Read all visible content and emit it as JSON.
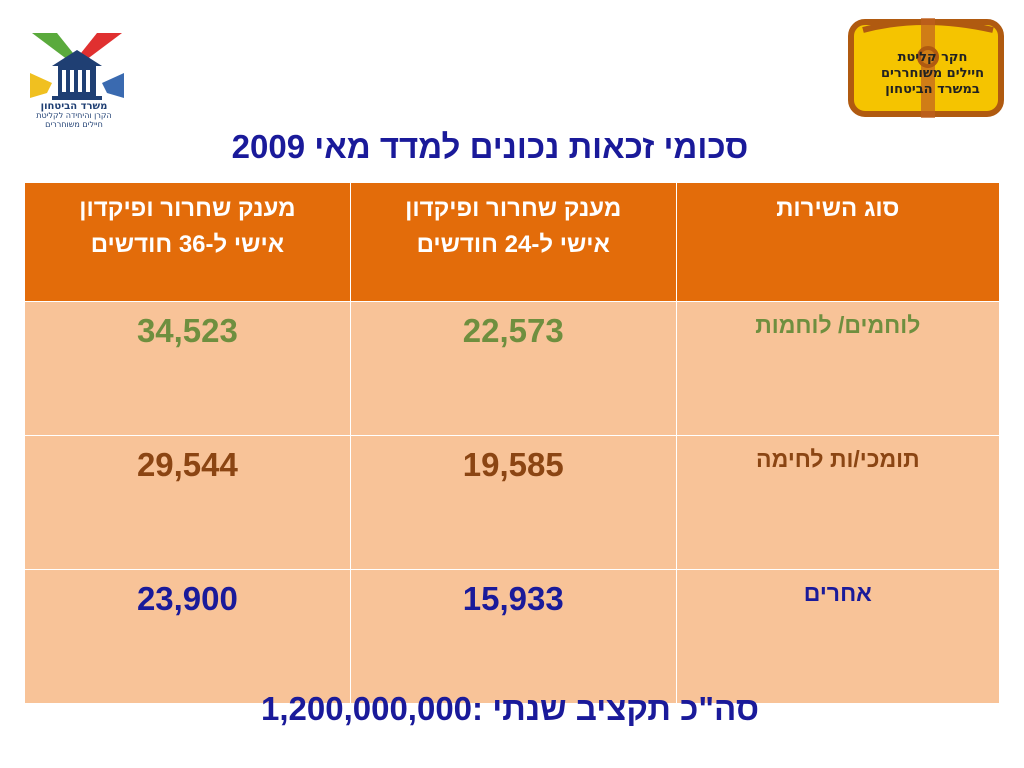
{
  "logos": {
    "left_text_lines": [
      "משרד הביטחון",
      "הקרן והיחידה לקליטת",
      "חיילים משוחררים"
    ],
    "right_text_lines": [
      "חקר קליטת",
      "חיילים משוחררים",
      "במשרד הביטחון"
    ]
  },
  "title": "סכומי זכאות נכונים למדד מאי 2009",
  "table": {
    "headers": {
      "service_type": "סוג השירות",
      "grant_24_line1": "מענק שחרור ופיקדון",
      "grant_24_line2": "אישי  ל-24 חודשים",
      "grant_36_line1": "מענק שחרור ופיקדון",
      "grant_36_line2": "אישי ל-36 חודשים"
    },
    "rows": [
      {
        "type": "לוחמים/ לוחמות",
        "months_24": "22,573",
        "months_36": "34,523",
        "color": "#6f8f3f"
      },
      {
        "type": "תומכי/ות לחימה",
        "months_24": "19,585",
        "months_36": "29,544",
        "color": "#8b4513"
      },
      {
        "type": "אחרים",
        "months_24": "15,933",
        "months_36": "23,900",
        "color": "#1a1a9a"
      }
    ]
  },
  "footer": "סה\"כ תקציב שנתי :1,200,000,000",
  "colors": {
    "header_bg": "#e36c0a",
    "cell_bg": "#f8c398",
    "title": "#1a1a9a"
  }
}
